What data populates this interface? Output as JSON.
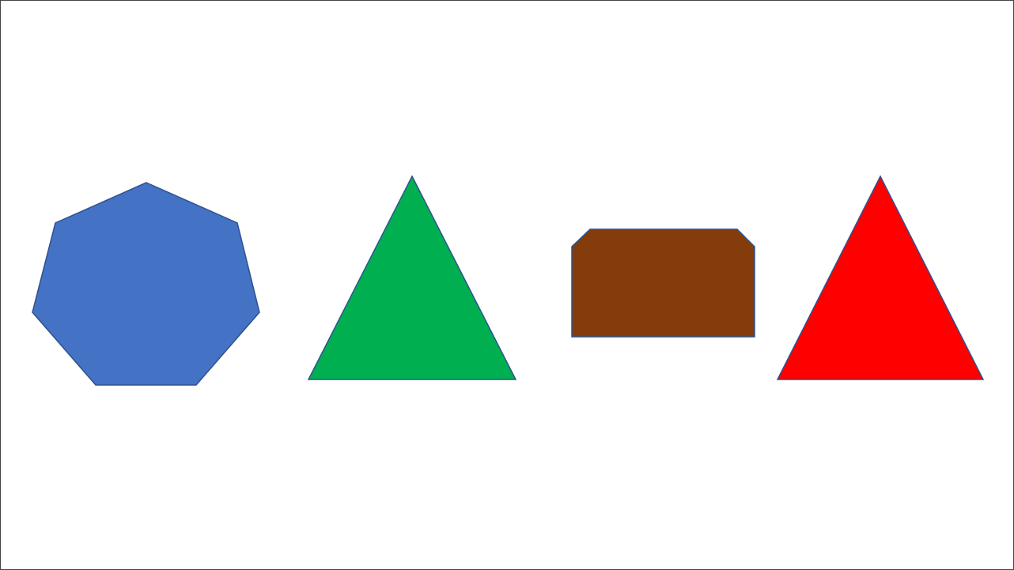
{
  "shapes": [
    {
      "name": "blue-heptagon",
      "kind": "heptagon",
      "fill": "#4472C4",
      "stroke": "#2F528F"
    },
    {
      "name": "green-triangle",
      "kind": "isosceles-triangle",
      "fill": "#00B050",
      "stroke": "#2F528F"
    },
    {
      "name": "brown-snipped-rectangle",
      "kind": "snip-corner-rectangle",
      "fill": "#843C0C",
      "stroke": "#2F528F"
    },
    {
      "name": "red-triangle",
      "kind": "isosceles-triangle",
      "fill": "#FF0000",
      "stroke": "#2F528F"
    }
  ],
  "colors": {
    "background": "#FFFFFF",
    "frame": "#444444"
  }
}
